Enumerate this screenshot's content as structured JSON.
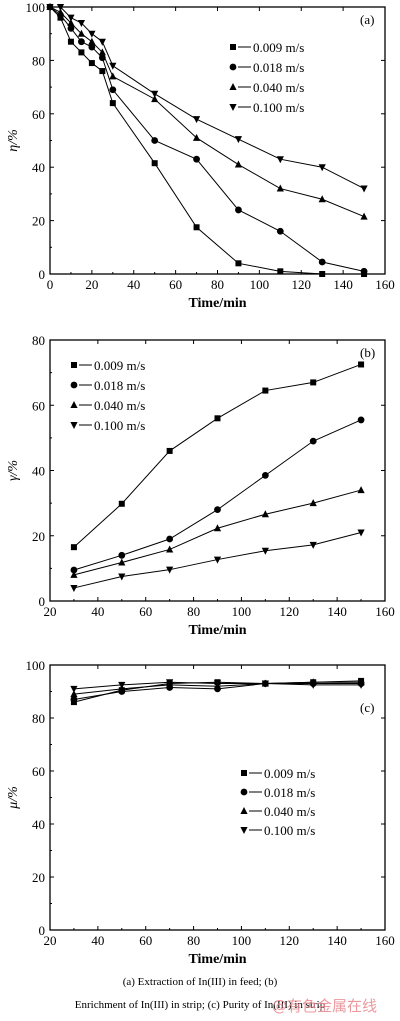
{
  "chart_data": [
    {
      "panel_label": "(a)",
      "type": "line",
      "ylabel": "η/%",
      "xlabel": "Time/min",
      "xlim": [
        0,
        160
      ],
      "ylim": [
        0,
        100
      ],
      "xticks": [
        0,
        20,
        40,
        60,
        80,
        100,
        120,
        140,
        160
      ],
      "yticks": [
        0,
        20,
        40,
        60,
        80,
        100
      ],
      "legend_position": "top-right",
      "grid": false,
      "series": [
        {
          "name": "0.009 m/s",
          "marker": "square",
          "x": [
            0,
            5,
            10,
            15,
            20,
            25,
            30,
            50,
            70,
            90,
            110,
            130,
            150
          ],
          "y": [
            100,
            96,
            87,
            83,
            79,
            76,
            64,
            41.5,
            17.5,
            4,
            1,
            0,
            0
          ]
        },
        {
          "name": "0.018 m/s",
          "marker": "circle",
          "x": [
            0,
            5,
            10,
            15,
            20,
            25,
            30,
            50,
            70,
            90,
            110,
            130,
            150
          ],
          "y": [
            100,
            97,
            92,
            87,
            85,
            81,
            69,
            50,
            43,
            24,
            16,
            4.5,
            1
          ]
        },
        {
          "name": "0.040 m/s",
          "marker": "triangle-up",
          "x": [
            0,
            5,
            10,
            15,
            20,
            25,
            30,
            50,
            70,
            90,
            110,
            130,
            150
          ],
          "y": [
            100,
            98,
            94,
            90,
            87,
            83,
            74,
            65.5,
            51,
            41,
            32,
            28,
            21.5
          ]
        },
        {
          "name": "0.100 m/s",
          "marker": "triangle-down",
          "x": [
            0,
            5,
            10,
            15,
            20,
            25,
            30,
            50,
            70,
            90,
            110,
            130,
            150
          ],
          "y": [
            100,
            100,
            96,
            94,
            90,
            87,
            78,
            67.5,
            58,
            50.5,
            43,
            40,
            32
          ]
        }
      ]
    },
    {
      "panel_label": "(b)",
      "type": "line",
      "ylabel": "γ/%",
      "xlabel": "Time/min",
      "xlim": [
        20,
        160
      ],
      "ylim": [
        0,
        80
      ],
      "xticks": [
        20,
        40,
        60,
        80,
        100,
        120,
        140,
        160
      ],
      "yticks": [
        0,
        20,
        40,
        60,
        80
      ],
      "legend_position": "top-left",
      "grid": false,
      "series": [
        {
          "name": "0.009 m/s",
          "marker": "square",
          "x": [
            30,
            50,
            70,
            90,
            110,
            130,
            150
          ],
          "y": [
            16.5,
            29.8,
            46,
            56,
            64.5,
            67,
            72.5
          ]
        },
        {
          "name": "0.018 m/s",
          "marker": "circle",
          "x": [
            30,
            50,
            70,
            90,
            110,
            130,
            150
          ],
          "y": [
            9.5,
            14,
            19,
            28,
            38.5,
            49,
            55.5
          ]
        },
        {
          "name": "0.040 m/s",
          "marker": "triangle-up",
          "x": [
            30,
            50,
            70,
            90,
            110,
            130,
            150
          ],
          "y": [
            8,
            11.8,
            15.8,
            22.3,
            26.6,
            30,
            34
          ]
        },
        {
          "name": "0.100 m/s",
          "marker": "triangle-down",
          "x": [
            30,
            50,
            70,
            90,
            110,
            130,
            150
          ],
          "y": [
            4,
            7.5,
            9.6,
            12.7,
            15.4,
            17.2,
            21
          ]
        }
      ]
    },
    {
      "panel_label": "(c)",
      "type": "line",
      "ylabel": "μ/%",
      "xlabel": "Time/min",
      "xlim": [
        20,
        160
      ],
      "ylim": [
        0,
        100
      ],
      "xticks": [
        20,
        40,
        60,
        80,
        100,
        120,
        140,
        160
      ],
      "yticks": [
        0,
        20,
        40,
        60,
        80,
        100
      ],
      "legend_position": "center-right",
      "grid": false,
      "series": [
        {
          "name": "0.009 m/s",
          "marker": "square",
          "x": [
            30,
            50,
            70,
            90,
            110,
            130,
            150
          ],
          "y": [
            86,
            90.5,
            93,
            93.5,
            93,
            93.5,
            94
          ]
        },
        {
          "name": "0.018 m/s",
          "marker": "circle",
          "x": [
            30,
            50,
            70,
            90,
            110,
            130,
            150
          ],
          "y": [
            87,
            90,
            91.5,
            91,
            93,
            93,
            93
          ]
        },
        {
          "name": "0.040 m/s",
          "marker": "triangle-up",
          "x": [
            30,
            50,
            70,
            90,
            110,
            130,
            150
          ],
          "y": [
            89,
            91,
            92.5,
            92,
            93,
            93.5,
            93.5
          ]
        },
        {
          "name": "0.100 m/s",
          "marker": "triangle-down",
          "x": [
            30,
            50,
            70,
            90,
            110,
            130,
            150
          ],
          "y": [
            91,
            92.5,
            93.5,
            93,
            93,
            92.5,
            92.5
          ]
        }
      ]
    }
  ],
  "caption": {
    "line1": "(a)  Extraction  of  In(III)  in  feed;  (b)",
    "line2": "Enrichment of In(III) in strip; (c) Purity of In(III) in strip"
  },
  "watermark": "@有色金属在线"
}
